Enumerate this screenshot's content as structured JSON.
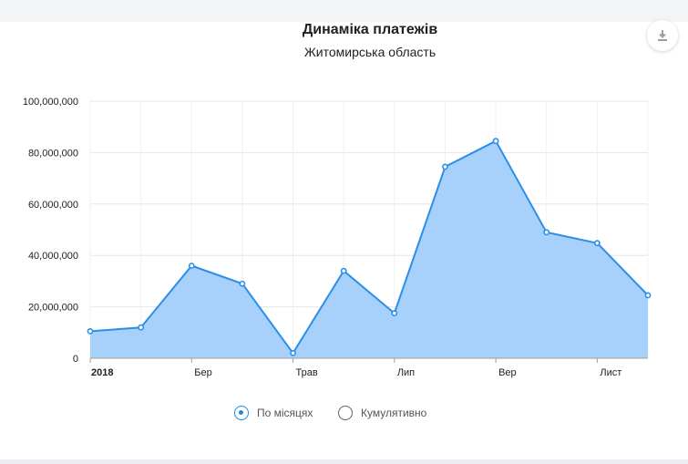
{
  "chart_data": {
    "type": "area",
    "title": "Динаміка платежів",
    "subtitle": "Житомирська область",
    "x": [
      "2018-01",
      "2018-02",
      "2018-03",
      "2018-04",
      "2018-05",
      "2018-06",
      "2018-07",
      "2018-08",
      "2018-09",
      "2018-10",
      "2018-11",
      "2018-12"
    ],
    "x_tick_labels": [
      "2018",
      "Бер",
      "Трав",
      "Лип",
      "Вер",
      "Лист"
    ],
    "values": [
      10500000,
      12000000,
      36000000,
      29000000,
      2000000,
      34000000,
      17500000,
      74500000,
      84500000,
      49000000,
      44800000,
      24500000
    ],
    "ylim": [
      0,
      100000000
    ],
    "y_ticks": [
      0,
      20000000,
      40000000,
      60000000,
      80000000,
      100000000
    ],
    "y_tick_labels": [
      "0",
      "20,000,000",
      "40,000,000",
      "60,000,000",
      "80,000,000",
      "100,000,000"
    ],
    "grid": true,
    "legend_position": "bottom",
    "colors": {
      "line": "#2b8ee8",
      "fill": "#a7d0fa"
    }
  },
  "toolbar": {
    "download_icon": "download-icon"
  },
  "view_toggle": {
    "options": [
      {
        "label": "По місяцях",
        "checked": true
      },
      {
        "label": "Кумулятивно",
        "checked": false
      }
    ]
  }
}
